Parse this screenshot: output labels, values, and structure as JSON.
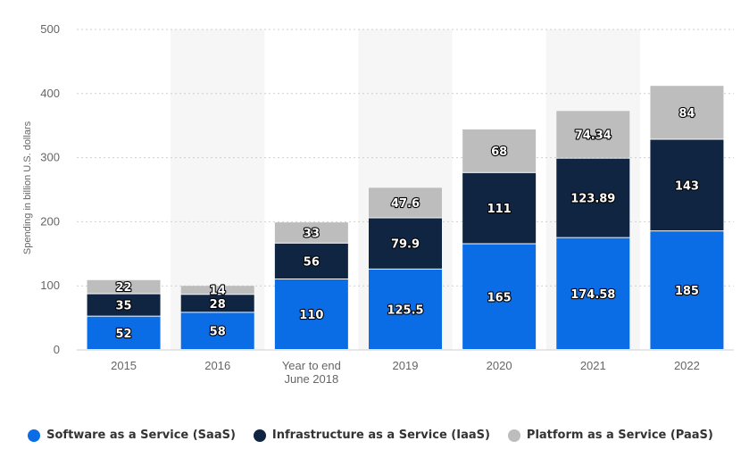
{
  "chart_data": {
    "type": "bar",
    "stacked": true,
    "categories": [
      "2015",
      "2016",
      "Year to end June 2018",
      "2019",
      "2020",
      "2021",
      "2022"
    ],
    "category_lines": [
      [
        "2015"
      ],
      [
        "2016"
      ],
      [
        "Year to end",
        "June 2018"
      ],
      [
        "2019"
      ],
      [
        "2020"
      ],
      [
        "2021"
      ],
      [
        "2022"
      ]
    ],
    "series": [
      {
        "name": "Software as a Service (SaaS)",
        "color": "#0a6de6",
        "values": [
          52,
          58,
          110,
          125.5,
          165,
          174.58,
          185
        ],
        "labels": [
          "52",
          "58",
          "110",
          "125.5",
          "165",
          "174.58",
          "185"
        ]
      },
      {
        "name": "Infrastructure as a Service (IaaS)",
        "color": "#0f2542",
        "values": [
          35,
          28,
          56,
          79.9,
          111,
          123.89,
          143
        ],
        "labels": [
          "35",
          "28",
          "56",
          "79.9",
          "111",
          "123.89",
          "143"
        ]
      },
      {
        "name": "Platform as a Service (PaaS)",
        "color": "#bdbdbd",
        "values": [
          22,
          14,
          33,
          47.6,
          68,
          74.34,
          84
        ],
        "labels": [
          "22",
          "14",
          "33",
          "47.6",
          "68",
          "74.34",
          "84"
        ]
      }
    ],
    "ylabel": "Spending in billion U.S. dollars",
    "ylim": [
      0,
      500
    ],
    "yticks": [
      "0",
      "100",
      "200",
      "300",
      "400",
      "500"
    ],
    "grid": true,
    "legend_position": "bottom-center",
    "shaded_band_color": "#f6f6f6",
    "gridline_color": "#cfcfcf"
  }
}
